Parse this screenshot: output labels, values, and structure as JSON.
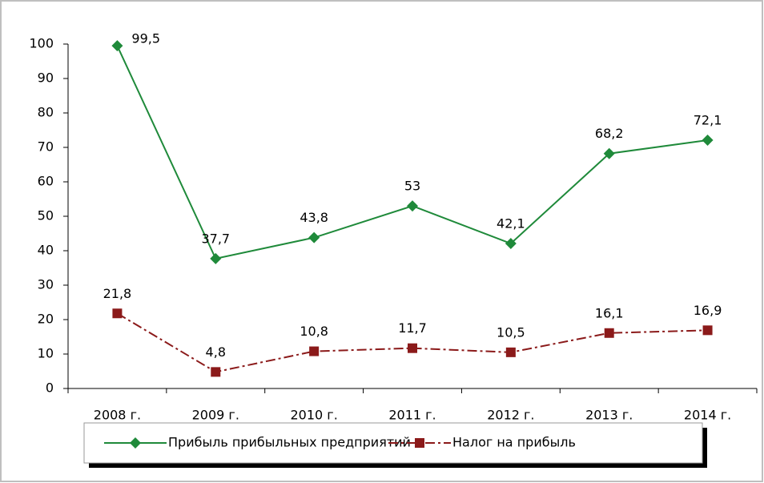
{
  "chart_data": {
    "type": "line",
    "categories": [
      "2008 г.",
      "2009 г.",
      "2010 г.",
      "2011 г.",
      "2012 г.",
      "2013 г.",
      "2014 г."
    ],
    "series": [
      {
        "name": "Прибыль прибыльных предприятий",
        "color": "#1f8a3a",
        "marker": "diamond",
        "line_style": "solid",
        "values": [
          99.5,
          37.7,
          43.8,
          53,
          42.1,
          68.2,
          72.1
        ],
        "value_labels": [
          "99,5",
          "37,7",
          "43,8",
          "53",
          "42,1",
          "68,2",
          "72,1"
        ]
      },
      {
        "name": "Налог на прибыль",
        "color": "#8b1a1a",
        "marker": "square",
        "line_style": "dashdot",
        "values": [
          21.8,
          4.8,
          10.8,
          11.7,
          10.5,
          16.1,
          16.9
        ],
        "value_labels": [
          "21,8",
          "4,8",
          "10,8",
          "11,7",
          "10,5",
          "16,1",
          "16,9"
        ]
      }
    ],
    "ylim": [
      0,
      100
    ],
    "yticks": [
      0,
      10,
      20,
      30,
      40,
      50,
      60,
      70,
      80,
      90,
      100
    ],
    "grid": false,
    "legend": "bottom"
  }
}
